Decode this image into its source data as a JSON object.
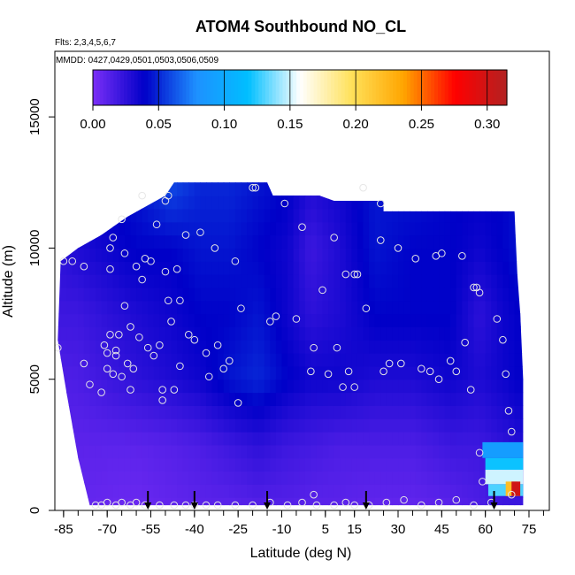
{
  "chart_data": {
    "type": "heatmap",
    "title": "ATOM4 Southbound NO_CL",
    "subtitle_flights": "Flts: 2,3,4,5,6,7",
    "subtitle_dates": "MMDD: 0427,0429,0501,0503,0506,0509",
    "xlabel": "Latitude (deg N)",
    "ylabel": "Altitude (m)",
    "xlim": [
      -88,
      82
    ],
    "ylim": [
      0,
      17500
    ],
    "x_tick_labels": [
      "-85",
      "-70",
      "-55",
      "-40",
      "-25",
      "-10",
      "5",
      "15",
      "30",
      "45",
      "60",
      "75"
    ],
    "x_tick_values": [
      -85,
      -70,
      -55,
      -40,
      -25,
      -10,
      5,
      15,
      30,
      45,
      60,
      75
    ],
    "y_tick_labels": [
      "0",
      "5000",
      "10000",
      "15000"
    ],
    "y_tick_values": [
      0,
      5000,
      10000,
      15000
    ],
    "colorbar": {
      "range": [
        0,
        0.315
      ],
      "tick_labels": [
        "0.00",
        "0.05",
        "0.10",
        "0.15",
        "0.20",
        "0.25",
        "0.30"
      ],
      "tick_values": [
        0,
        0.05,
        0.1,
        0.15,
        0.2,
        0.25,
        0.3
      ],
      "colors": [
        "#7b2ff7",
        "#0000c8",
        "#1e90ff",
        "#00bfff",
        "#ffffff",
        "#ffe15a",
        "#ffa500",
        "#ff0000",
        "#b22222"
      ]
    },
    "outline": [
      [
        -87,
        6500
      ],
      [
        -86,
        9500
      ],
      [
        -80,
        10000
      ],
      [
        -72,
        10500
      ],
      [
        -63,
        11200
      ],
      [
        -50,
        12000
      ],
      [
        -47,
        12500
      ],
      [
        -15,
        12500
      ],
      [
        -13,
        12000
      ],
      [
        3,
        12000
      ],
      [
        8,
        11800
      ],
      [
        25,
        11800
      ],
      [
        25,
        11400
      ],
      [
        70,
        11400
      ],
      [
        71,
        9000
      ],
      [
        72,
        7500
      ],
      [
        73,
        5000
      ],
      [
        73,
        200
      ],
      [
        -76,
        200
      ],
      [
        -80,
        2000
      ],
      [
        -84,
        4500
      ]
    ],
    "field_columns": [
      {
        "lat": -87,
        "levels": [
          [
            0,
            0.012
          ],
          [
            2500,
            0.012
          ],
          [
            5000,
            0.014
          ],
          [
            7500,
            0.02
          ],
          [
            10000,
            0.025
          ],
          [
            12500,
            0.03
          ]
        ]
      },
      {
        "lat": -80,
        "levels": [
          [
            0,
            0.008
          ],
          [
            2500,
            0.01
          ],
          [
            5000,
            0.015
          ],
          [
            7500,
            0.02
          ],
          [
            10000,
            0.03
          ],
          [
            12500,
            0.035
          ]
        ]
      },
      {
        "lat": -70,
        "levels": [
          [
            0,
            0.006
          ],
          [
            2500,
            0.01
          ],
          [
            5000,
            0.02
          ],
          [
            7500,
            0.025
          ],
          [
            10000,
            0.035
          ],
          [
            12500,
            0.04
          ]
        ]
      },
      {
        "lat": -60,
        "levels": [
          [
            0,
            0.005
          ],
          [
            2500,
            0.01
          ],
          [
            5000,
            0.025
          ],
          [
            7500,
            0.03
          ],
          [
            10000,
            0.04
          ],
          [
            12500,
            0.045
          ]
        ]
      },
      {
        "lat": -48,
        "levels": [
          [
            0,
            0.008
          ],
          [
            2500,
            0.012
          ],
          [
            5000,
            0.03
          ],
          [
            7500,
            0.035
          ],
          [
            10000,
            0.04
          ],
          [
            12500,
            0.06
          ]
        ]
      },
      {
        "lat": -38,
        "levels": [
          [
            0,
            0.01
          ],
          [
            2500,
            0.015
          ],
          [
            5000,
            0.035
          ],
          [
            7500,
            0.04
          ],
          [
            10000,
            0.045
          ],
          [
            12500,
            0.05
          ]
        ]
      },
      {
        "lat": -28,
        "levels": [
          [
            0,
            0.01
          ],
          [
            2500,
            0.02
          ],
          [
            5000,
            0.045
          ],
          [
            7500,
            0.04
          ],
          [
            10000,
            0.045
          ],
          [
            12500,
            0.05
          ]
        ]
      },
      {
        "lat": -18,
        "levels": [
          [
            0,
            0.012
          ],
          [
            2500,
            0.025
          ],
          [
            5000,
            0.05
          ],
          [
            7500,
            0.045
          ],
          [
            10000,
            0.04
          ],
          [
            12500,
            0.045
          ]
        ]
      },
      {
        "lat": -8,
        "levels": [
          [
            0,
            0.012
          ],
          [
            2500,
            0.02
          ],
          [
            5000,
            0.04
          ],
          [
            7500,
            0.035
          ],
          [
            10000,
            0.035
          ],
          [
            12500,
            0.04
          ]
        ]
      },
      {
        "lat": 0,
        "levels": [
          [
            0,
            0.01
          ],
          [
            2500,
            0.018
          ],
          [
            5000,
            0.035
          ],
          [
            7500,
            0.025
          ],
          [
            10000,
            0.02
          ],
          [
            12500,
            0.03
          ]
        ]
      },
      {
        "lat": 10,
        "levels": [
          [
            0,
            0.01
          ],
          [
            2500,
            0.015
          ],
          [
            5000,
            0.035
          ],
          [
            7500,
            0.03
          ],
          [
            10000,
            0.03
          ],
          [
            12500,
            0.035
          ]
        ]
      },
      {
        "lat": 22,
        "levels": [
          [
            0,
            0.008
          ],
          [
            2500,
            0.015
          ],
          [
            5000,
            0.03
          ],
          [
            7500,
            0.04
          ],
          [
            10000,
            0.045
          ],
          [
            12500,
            0.045
          ]
        ]
      },
      {
        "lat": 35,
        "levels": [
          [
            0,
            0.008
          ],
          [
            2500,
            0.015
          ],
          [
            5000,
            0.03
          ],
          [
            7500,
            0.04
          ],
          [
            10000,
            0.04
          ],
          [
            12500,
            0.045
          ]
        ]
      },
      {
        "lat": 48,
        "levels": [
          [
            0,
            0.01
          ],
          [
            2500,
            0.02
          ],
          [
            5000,
            0.035
          ],
          [
            7500,
            0.04
          ],
          [
            10000,
            0.04
          ],
          [
            12500,
            0.04
          ]
        ]
      },
      {
        "lat": 58,
        "levels": [
          [
            0,
            0.015
          ],
          [
            2500,
            0.02
          ],
          [
            5000,
            0.03
          ],
          [
            7500,
            0.025
          ],
          [
            10000,
            0.035
          ],
          [
            12500,
            0.04
          ]
        ]
      },
      {
        "lat": 66,
        "levels": [
          [
            0,
            0.02
          ],
          [
            2500,
            0.025
          ],
          [
            5000,
            0.035
          ],
          [
            7500,
            0.035
          ],
          [
            10000,
            0.04
          ],
          [
            12500,
            0.04
          ]
        ]
      },
      {
        "lat": 73,
        "levels": [
          [
            0,
            0.02
          ],
          [
            2500,
            0.03
          ],
          [
            5000,
            0.04
          ],
          [
            7500,
            0.04
          ],
          [
            10000,
            0.045
          ],
          [
            12500,
            0.045
          ]
        ]
      }
    ],
    "hotspot_cells": [
      {
        "lat0": 59,
        "lat1": 73,
        "alt0": 2000,
        "alt1": 2600,
        "value": 0.09
      },
      {
        "lat0": 60,
        "lat1": 73,
        "alt0": 1550,
        "alt1": 2000,
        "value": 0.12
      },
      {
        "lat0": 60,
        "lat1": 73,
        "alt0": 1000,
        "alt1": 1550,
        "value": 0.15
      },
      {
        "lat0": 61,
        "lat1": 73,
        "alt0": 550,
        "alt1": 1000,
        "value": 0.13
      },
      {
        "lat0": 67,
        "lat1": 71,
        "alt0": 550,
        "alt1": 1100,
        "value": 0.22
      },
      {
        "lat0": 69,
        "lat1": 72,
        "alt0": 550,
        "alt1": 1100,
        "value": 0.3
      }
    ],
    "sample_points": [
      [
        -87,
        6200
      ],
      [
        -85,
        9500
      ],
      [
        -82,
        9500
      ],
      [
        -78,
        9300
      ],
      [
        -78,
        5600
      ],
      [
        -76,
        4800
      ],
      [
        -74,
        200
      ],
      [
        -72,
        4500
      ],
      [
        -71,
        6300
      ],
      [
        -70,
        6000
      ],
      [
        -70,
        5400
      ],
      [
        -69,
        6700
      ],
      [
        -69,
        10000
      ],
      [
        -69,
        9200
      ],
      [
        -68,
        10400
      ],
      [
        -68,
        5200
      ],
      [
        -67,
        6100
      ],
      [
        -67,
        5900
      ],
      [
        -66,
        6700
      ],
      [
        -65,
        11100
      ],
      [
        -65,
        5100
      ],
      [
        -64,
        9800
      ],
      [
        -64,
        7800
      ],
      [
        -63,
        5600
      ],
      [
        -62,
        4600
      ],
      [
        -62,
        7000
      ],
      [
        -61,
        5400
      ],
      [
        -60,
        9300
      ],
      [
        -59,
        6600
      ],
      [
        -58,
        8800
      ],
      [
        -58,
        12000
      ],
      [
        -57,
        9600
      ],
      [
        -56,
        6200
      ],
      [
        -55,
        9500
      ],
      [
        -54,
        5900
      ],
      [
        -53,
        10900
      ],
      [
        -52,
        6300
      ],
      [
        -51,
        4600
      ],
      [
        -51,
        4200
      ],
      [
        -50,
        11800
      ],
      [
        -50,
        9100
      ],
      [
        -49,
        8000
      ],
      [
        -49,
        12000
      ],
      [
        -48,
        7200
      ],
      [
        -47,
        4600
      ],
      [
        -46,
        9200
      ],
      [
        -45,
        8000
      ],
      [
        -45,
        5500
      ],
      [
        -43,
        10500
      ],
      [
        -42,
        6700
      ],
      [
        -40,
        6500
      ],
      [
        -38,
        10600
      ],
      [
        -36,
        6000
      ],
      [
        -35,
        5100
      ],
      [
        -33,
        10000
      ],
      [
        -32,
        6300
      ],
      [
        -30,
        5400
      ],
      [
        -28,
        5700
      ],
      [
        -26,
        9500
      ],
      [
        -25,
        4100
      ],
      [
        -24,
        7700
      ],
      [
        -20,
        12300
      ],
      [
        -19,
        12300
      ],
      [
        -14,
        7200
      ],
      [
        -12,
        7400
      ],
      [
        -9,
        11700
      ],
      [
        -5,
        7300
      ],
      [
        -3,
        10800
      ],
      [
        0,
        5300
      ],
      [
        1,
        6200
      ],
      [
        4,
        8400
      ],
      [
        6,
        5200
      ],
      [
        8,
        10400
      ],
      [
        9,
        6200
      ],
      [
        11,
        4700
      ],
      [
        12,
        9000
      ],
      [
        13,
        5300
      ],
      [
        15,
        4700
      ],
      [
        15,
        9000
      ],
      [
        16,
        9000
      ],
      [
        18,
        12300
      ],
      [
        19,
        7700
      ],
      [
        24,
        10300
      ],
      [
        24,
        11700
      ],
      [
        25,
        5300
      ],
      [
        27,
        5600
      ],
      [
        30,
        10000
      ],
      [
        31,
        5600
      ],
      [
        36,
        9600
      ],
      [
        38,
        5400
      ],
      [
        41,
        5300
      ],
      [
        43,
        9700
      ],
      [
        44,
        5000
      ],
      [
        45,
        9800
      ],
      [
        48,
        5700
      ],
      [
        50,
        5300
      ],
      [
        52,
        9700
      ],
      [
        53,
        6400
      ],
      [
        55,
        4600
      ],
      [
        56,
        8500
      ],
      [
        57,
        8500
      ],
      [
        58,
        8300
      ],
      [
        58,
        2200
      ],
      [
        59,
        1100
      ],
      [
        64,
        7300
      ],
      [
        66,
        6500
      ],
      [
        67,
        5200
      ],
      [
        68,
        3800
      ],
      [
        69,
        3000
      ],
      [
        69,
        600
      ],
      [
        -72,
        200
      ],
      [
        -70,
        300
      ],
      [
        -67,
        200
      ],
      [
        -65,
        300
      ],
      [
        -62,
        200
      ],
      [
        -60,
        300
      ],
      [
        -57,
        200
      ],
      [
        -52,
        200
      ],
      [
        -47,
        200
      ],
      [
        -43,
        200
      ],
      [
        -40,
        200
      ],
      [
        -36,
        200
      ],
      [
        -32,
        200
      ],
      [
        -26,
        200
      ],
      [
        -20,
        200
      ],
      [
        -14,
        300
      ],
      [
        -8,
        200
      ],
      [
        -3,
        300
      ],
      [
        1,
        600
      ],
      [
        2,
        200
      ],
      [
        8,
        200
      ],
      [
        12,
        300
      ],
      [
        15,
        200
      ],
      [
        20,
        200
      ],
      [
        26,
        300
      ],
      [
        32,
        400
      ],
      [
        38,
        200
      ],
      [
        44,
        300
      ],
      [
        50,
        400
      ],
      [
        56,
        200
      ],
      [
        62,
        300
      ]
    ],
    "marker_arrows_lat": [
      -56,
      -40,
      -15,
      19,
      63
    ]
  }
}
